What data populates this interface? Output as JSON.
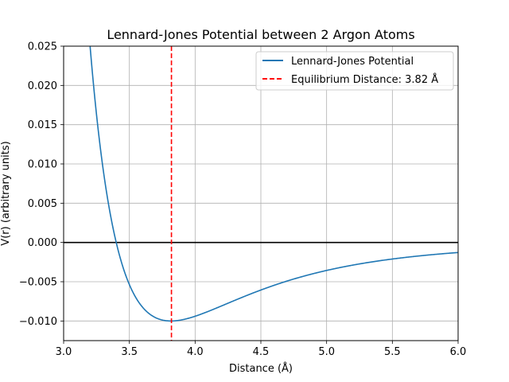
{
  "chart_data": {
    "type": "line",
    "title": "Lennard-Jones Potential between 2 Argon Atoms",
    "xlabel": "Distance (Å)",
    "ylabel": "V(r) (arbitrary units)",
    "xlim": [
      3.0,
      6.0
    ],
    "ylim": [
      -0.0125,
      0.025
    ],
    "xticks": [
      3.0,
      3.5,
      4.0,
      4.5,
      5.0,
      5.5,
      6.0
    ],
    "xtick_labels": [
      "3.0",
      "3.5",
      "4.0",
      "4.5",
      "5.0",
      "5.5",
      "6.0"
    ],
    "yticks": [
      -0.01,
      -0.005,
      0.0,
      0.005,
      0.01,
      0.015,
      0.02,
      0.025
    ],
    "ytick_labels": [
      "−0.010",
      "−0.005",
      "0.000",
      "0.005",
      "0.010",
      "0.015",
      "0.020",
      "0.025"
    ],
    "grid": true,
    "legend_position": "top-right",
    "model": {
      "epsilon": 0.01,
      "sigma": 3.4
    },
    "series": [
      {
        "name": "Lennard-Jones Potential",
        "color": "#1f77b4",
        "style": "solid",
        "x": [
          3.2,
          3.25,
          3.3,
          3.35,
          3.4,
          3.45,
          3.5,
          3.55,
          3.6,
          3.65,
          3.7,
          3.75,
          3.82,
          3.9,
          4.0,
          4.1,
          4.25,
          4.4,
          4.6,
          4.8,
          5.0,
          5.25,
          5.5,
          5.75,
          6.0
        ],
        "y": [
          0.0249,
          0.0163,
          0.0092,
          0.0039,
          0.0,
          -0.0032,
          -0.0055,
          -0.0072,
          -0.0084,
          -0.0092,
          -0.0097,
          -0.0099,
          -0.01,
          -0.0098,
          -0.0093,
          -0.0086,
          -0.0074,
          -0.0063,
          -0.005,
          -0.004,
          -0.0032,
          -0.0024,
          -0.0019,
          -0.0015,
          -0.0012
        ]
      }
    ],
    "reference_lines": [
      {
        "orientation": "vertical",
        "value": 3.82,
        "name": "Equilibrium Distance: 3.82 Å",
        "color": "#ff0000",
        "style": "dashed"
      },
      {
        "orientation": "horizontal",
        "value": 0.0,
        "color": "#000000",
        "style": "solid"
      }
    ]
  }
}
